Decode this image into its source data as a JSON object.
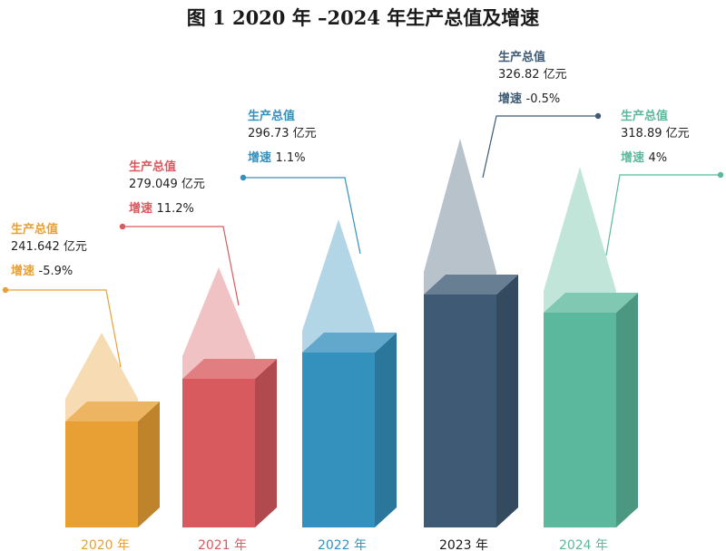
{
  "title": "图 1    2020 年 –2024 年生产总值及增速",
  "labels": {
    "value_heading": "生产总值",
    "growth_heading": "增速",
    "value_unit": "亿元"
  },
  "colors": {
    "2020": "#E8A034",
    "2021": "#D85A5F",
    "2022": "#3490BD",
    "2023": "#3E5A74",
    "2024": "#5CB89C"
  },
  "chart_data": {
    "type": "bar",
    "title": "图 1    2020 年 –2024 年生产总值及增速",
    "categories": [
      "2020 年",
      "2021 年",
      "2022 年",
      "2023 年",
      "2024 年"
    ],
    "series": [
      {
        "name": "生产总值",
        "values": [
          241.642,
          279.049,
          296.73,
          326.82,
          318.89
        ],
        "value_labels": [
          "241.642 亿元",
          "279.049 亿元",
          "296.73 亿元",
          "326.82 亿元",
          "318.89 亿元"
        ]
      },
      {
        "name": "增速",
        "values": [
          -5.9,
          11.2,
          1.1,
          -0.5,
          4
        ],
        "value_labels": [
          "-5.9%",
          "11.2%",
          "1.1%",
          "-0.5%",
          "4%"
        ]
      }
    ],
    "grid": false
  }
}
